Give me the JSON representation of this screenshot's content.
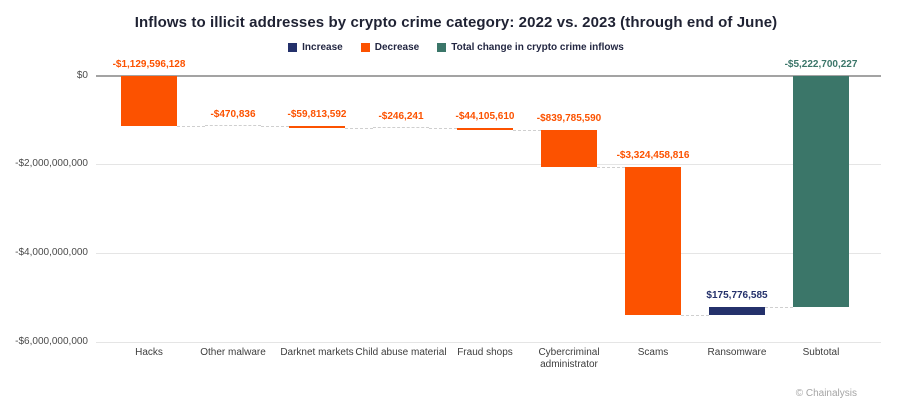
{
  "title": "Inflows to illicit addresses by crypto crime category: 2022 vs. 2023 (through end of June)",
  "footer": "© Chainalysis",
  "colors": {
    "increase": "#24316b",
    "decrease": "#fc5200",
    "total": "#3b7669",
    "zero_line": "#a3a3a3",
    "gridline": "#e5e5e5",
    "connector": "#cfcfcf"
  },
  "legend": [
    {
      "label": "Increase",
      "type": "increase"
    },
    {
      "label": "Decrease",
      "type": "decrease"
    },
    {
      "label": "Total change in crypto crime inflows",
      "type": "total"
    }
  ],
  "chart_data": {
    "type": "bar",
    "subtype": "waterfall",
    "title": "Inflows to illicit addresses by crypto crime category: 2022 vs. 2023 (through end of June)",
    "categories": [
      "Hacks",
      "Other malware",
      "Darknet markets",
      "Child abuse material",
      "Fraud shops",
      "Cybercriminal administrator",
      "Scams",
      "Ransomware",
      "Subtotal"
    ],
    "values": [
      -1129596128,
      -470836,
      -59813592,
      -246241,
      -44105610,
      -839785590,
      -3324458816,
      175776585,
      -5222700227
    ],
    "value_labels": [
      "-$1,129,596,128",
      "-$470,836",
      "-$59,813,592",
      "-$246,241",
      "-$44,105,610",
      "-$839,785,590",
      "-$3,324,458,816",
      "$175,776,585",
      "-$5,222,700,227"
    ],
    "bar_types": [
      "decrease",
      "decrease",
      "decrease",
      "decrease",
      "decrease",
      "decrease",
      "decrease",
      "increase",
      "total"
    ],
    "xlabel": "",
    "ylabel": "",
    "ylim": [
      -6000000000,
      0
    ],
    "y_ticks": [
      {
        "label": "$0",
        "value": 0
      },
      {
        "label": "-$2,000,000,000",
        "value": -2000000000
      },
      {
        "label": "-$4,000,000,000",
        "value": -4000000000
      },
      {
        "label": "-$6,000,000,000",
        "value": -6000000000
      }
    ],
    "grid": true,
    "legend_position": "top-center"
  }
}
